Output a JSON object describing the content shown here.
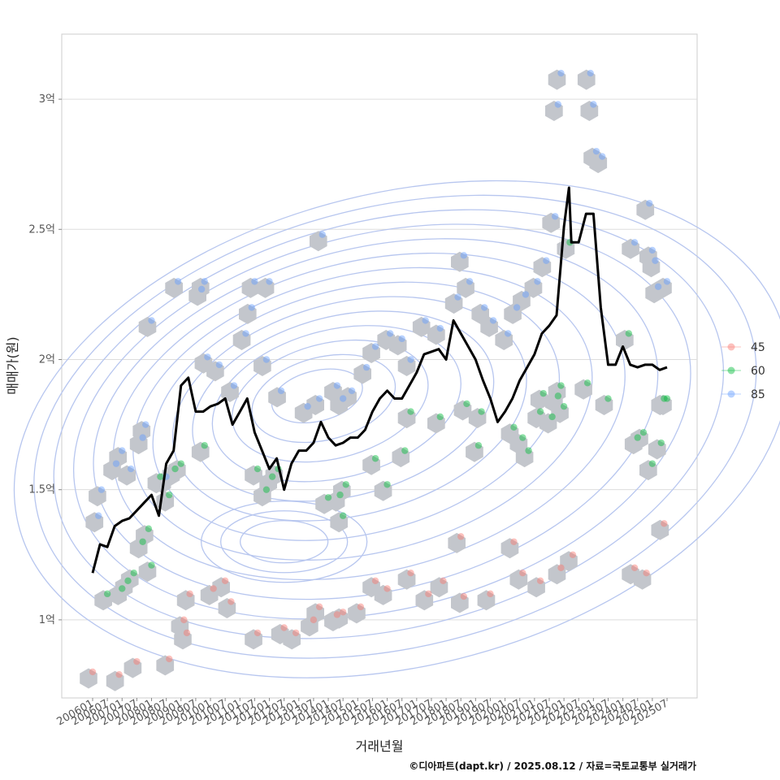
{
  "chart_data": {
    "type": "line",
    "title": "",
    "xlabel": "거래년월",
    "ylabel": "매매가(원)",
    "caption": "©디아파트(dapt.kr) / 2025.08.12 / 자료=국토교통부 실거래가",
    "x_ticks": [
      "200601",
      "200607",
      "200701",
      "200707",
      "200801",
      "200807",
      "200901",
      "200907",
      "201001",
      "201007",
      "201101",
      "201107",
      "201201",
      "201207",
      "201301",
      "201307",
      "201401",
      "201407",
      "201501",
      "201507",
      "201601",
      "201607",
      "201701",
      "201707",
      "201801",
      "201807",
      "201901",
      "201907",
      "202001",
      "202007",
      "202101",
      "202107",
      "202201",
      "202207",
      "202301",
      "202307",
      "202401",
      "202407",
      "202501",
      "202507"
    ],
    "y_ticks": [
      {
        "value": 1.0,
        "label": "1억"
      },
      {
        "value": 1.5,
        "label": "1.5억"
      },
      {
        "value": 2.0,
        "label": "2억"
      },
      {
        "value": 2.5,
        "label": "2.5억"
      },
      {
        "value": 3.0,
        "label": "3억"
      }
    ],
    "ylim": [
      0.7,
      3.25
    ],
    "grid": true,
    "legend_position": "right",
    "legend": [
      {
        "name": "45",
        "color": "#F8766D"
      },
      {
        "name": "60",
        "color": "#00BA38"
      },
      {
        "name": "85",
        "color": "#619CFF"
      }
    ],
    "trend_line": {
      "color": "#000000",
      "x": [
        2006.0,
        2006.25,
        2006.5,
        2006.75,
        2007.0,
        2007.25,
        2007.5,
        2007.75,
        2008.0,
        2008.25,
        2008.5,
        2008.75,
        2009.0,
        2009.25,
        2009.5,
        2009.75,
        2010.0,
        2010.25,
        2010.5,
        2010.75,
        2011.0,
        2011.25,
        2011.5,
        2011.75,
        2012.0,
        2012.25,
        2012.5,
        2012.75,
        2013.0,
        2013.25,
        2013.5,
        2013.75,
        2014.0,
        2014.25,
        2014.5,
        2014.75,
        2015.0,
        2015.25,
        2015.5,
        2015.75,
        2016.0,
        2016.25,
        2016.5,
        2016.75,
        2017.0,
        2017.25,
        2017.5,
        2017.75,
        2018.0,
        2018.25,
        2018.5,
        2018.75,
        2019.0,
        2019.25,
        2019.5,
        2019.75,
        2020.0,
        2020.25,
        2020.5,
        2020.75,
        2021.0,
        2021.25,
        2021.5,
        2021.75,
        2022.0,
        2022.17,
        2022.25,
        2022.33,
        2022.5,
        2022.75,
        2023.0,
        2023.25,
        2023.5,
        2023.75,
        2024.0,
        2024.25,
        2024.5,
        2024.75,
        2025.0,
        2025.25,
        2025.5
      ],
      "y": [
        1.18,
        1.29,
        1.28,
        1.36,
        1.38,
        1.39,
        1.42,
        1.45,
        1.48,
        1.4,
        1.6,
        1.65,
        1.9,
        1.93,
        1.8,
        1.8,
        1.82,
        1.83,
        1.85,
        1.75,
        1.8,
        1.85,
        1.72,
        1.65,
        1.58,
        1.62,
        1.5,
        1.6,
        1.65,
        1.65,
        1.68,
        1.76,
        1.7,
        1.67,
        1.68,
        1.7,
        1.7,
        1.73,
        1.8,
        1.85,
        1.88,
        1.85,
        1.85,
        1.9,
        1.95,
        2.02,
        2.03,
        2.04,
        2.0,
        2.15,
        2.1,
        2.05,
        2.0,
        1.92,
        1.85,
        1.76,
        1.8,
        1.85,
        1.92,
        1.97,
        2.02,
        2.1,
        2.13,
        2.17,
        2.51,
        2.66,
        2.45,
        2.45,
        2.45,
        2.56,
        2.56,
        2.2,
        1.98,
        1.98,
        2.05,
        1.98,
        1.97,
        1.98,
        1.98,
        1.96,
        1.97
      ]
    },
    "scatter_series": [
      {
        "name": "45",
        "points": [
          [
            2006.0,
            0.8
          ],
          [
            2006.9,
            0.79
          ],
          [
            2007.5,
            0.84
          ],
          [
            2008.6,
            0.85
          ],
          [
            2009.1,
            1.0
          ],
          [
            2009.2,
            0.95
          ],
          [
            2009.3,
            1.1
          ],
          [
            2010.1,
            1.12
          ],
          [
            2010.5,
            1.15
          ],
          [
            2010.7,
            1.07
          ],
          [
            2011.6,
            0.95
          ],
          [
            2012.5,
            0.97
          ],
          [
            2012.9,
            0.95
          ],
          [
            2013.5,
            1.0
          ],
          [
            2013.7,
            1.05
          ],
          [
            2014.3,
            1.02
          ],
          [
            2014.5,
            1.03
          ],
          [
            2015.1,
            1.05
          ],
          [
            2015.6,
            1.15
          ],
          [
            2016.0,
            1.12
          ],
          [
            2016.8,
            1.18
          ],
          [
            2017.4,
            1.1
          ],
          [
            2017.9,
            1.15
          ],
          [
            2018.5,
            1.32
          ],
          [
            2018.6,
            1.09
          ],
          [
            2019.5,
            1.1
          ],
          [
            2020.3,
            1.3
          ],
          [
            2020.6,
            1.18
          ],
          [
            2021.2,
            1.15
          ],
          [
            2021.9,
            1.2
          ],
          [
            2022.3,
            1.25
          ],
          [
            2024.4,
            1.2
          ],
          [
            2024.8,
            1.18
          ],
          [
            2025.4,
            1.37
          ]
        ]
      },
      {
        "name": "60",
        "points": [
          [
            2006.5,
            1.1
          ],
          [
            2007.0,
            1.12
          ],
          [
            2007.2,
            1.15
          ],
          [
            2007.4,
            1.18
          ],
          [
            2007.7,
            1.3
          ],
          [
            2007.9,
            1.35
          ],
          [
            2008.0,
            1.21
          ],
          [
            2008.3,
            1.55
          ],
          [
            2008.6,
            1.48
          ],
          [
            2008.8,
            1.58
          ],
          [
            2009.0,
            1.6
          ],
          [
            2009.8,
            1.67
          ],
          [
            2011.6,
            1.58
          ],
          [
            2011.9,
            1.5
          ],
          [
            2012.1,
            1.55
          ],
          [
            2012.3,
            1.58
          ],
          [
            2014.0,
            1.47
          ],
          [
            2014.4,
            1.48
          ],
          [
            2014.5,
            1.4
          ],
          [
            2014.6,
            1.52
          ],
          [
            2015.6,
            1.62
          ],
          [
            2016.0,
            1.52
          ],
          [
            2016.6,
            1.65
          ],
          [
            2016.8,
            1.8
          ],
          [
            2017.8,
            1.78
          ],
          [
            2018.7,
            1.83
          ],
          [
            2019.1,
            1.67
          ],
          [
            2019.2,
            1.8
          ],
          [
            2020.3,
            1.74
          ],
          [
            2020.6,
            1.7
          ],
          [
            2020.8,
            1.65
          ],
          [
            2021.2,
            1.8
          ],
          [
            2021.3,
            1.87
          ],
          [
            2021.6,
            1.78
          ],
          [
            2021.8,
            1.86
          ],
          [
            2021.9,
            1.9
          ],
          [
            2022.0,
            1.82
          ],
          [
            2022.2,
            2.45
          ],
          [
            2022.8,
            1.91
          ],
          [
            2023.5,
            1.85
          ],
          [
            2024.2,
            2.1
          ],
          [
            2024.5,
            1.7
          ],
          [
            2024.7,
            1.72
          ],
          [
            2025.0,
            1.6
          ],
          [
            2025.3,
            1.68
          ],
          [
            2025.4,
            1.85
          ],
          [
            2025.5,
            1.85
          ]
        ]
      },
      {
        "name": "85",
        "points": [
          [
            2006.2,
            1.4
          ],
          [
            2006.3,
            1.5
          ],
          [
            2006.8,
            1.6
          ],
          [
            2007.0,
            1.65
          ],
          [
            2007.3,
            1.58
          ],
          [
            2007.7,
            1.7
          ],
          [
            2007.8,
            1.75
          ],
          [
            2008.0,
            2.15
          ],
          [
            2008.5,
            1.55
          ],
          [
            2008.9,
            2.3
          ],
          [
            2009.7,
            2.27
          ],
          [
            2009.8,
            2.3
          ],
          [
            2009.9,
            2.01
          ],
          [
            2010.3,
            1.98
          ],
          [
            2010.8,
            1.9
          ],
          [
            2011.2,
            2.1
          ],
          [
            2011.4,
            2.2
          ],
          [
            2011.5,
            2.3
          ],
          [
            2012.0,
            2.3
          ],
          [
            2011.9,
            2.0
          ],
          [
            2012.4,
            1.88
          ],
          [
            2013.3,
            1.82
          ],
          [
            2013.7,
            1.85
          ],
          [
            2013.8,
            2.48
          ],
          [
            2014.3,
            1.9
          ],
          [
            2014.5,
            1.85
          ],
          [
            2014.8,
            1.88
          ],
          [
            2015.3,
            1.97
          ],
          [
            2015.6,
            2.05
          ],
          [
            2016.1,
            2.1
          ],
          [
            2016.5,
            2.08
          ],
          [
            2016.8,
            2.0
          ],
          [
            2017.3,
            2.15
          ],
          [
            2017.8,
            2.12
          ],
          [
            2018.4,
            2.24
          ],
          [
            2018.6,
            2.4
          ],
          [
            2018.8,
            2.3
          ],
          [
            2019.3,
            2.2
          ],
          [
            2019.6,
            2.15
          ],
          [
            2020.1,
            2.1
          ],
          [
            2020.4,
            2.2
          ],
          [
            2020.7,
            2.25
          ],
          [
            2021.1,
            2.3
          ],
          [
            2021.4,
            2.38
          ],
          [
            2021.7,
            2.55
          ],
          [
            2021.8,
            2.98
          ],
          [
            2021.9,
            3.1
          ],
          [
            2022.9,
            3.1
          ],
          [
            2023.0,
            2.98
          ],
          [
            2023.1,
            2.8
          ],
          [
            2023.3,
            2.78
          ],
          [
            2024.4,
            2.45
          ],
          [
            2024.9,
            2.6
          ],
          [
            2025.0,
            2.42
          ],
          [
            2025.1,
            2.38
          ],
          [
            2025.2,
            2.28
          ],
          [
            2025.5,
            2.3
          ]
        ]
      }
    ]
  }
}
